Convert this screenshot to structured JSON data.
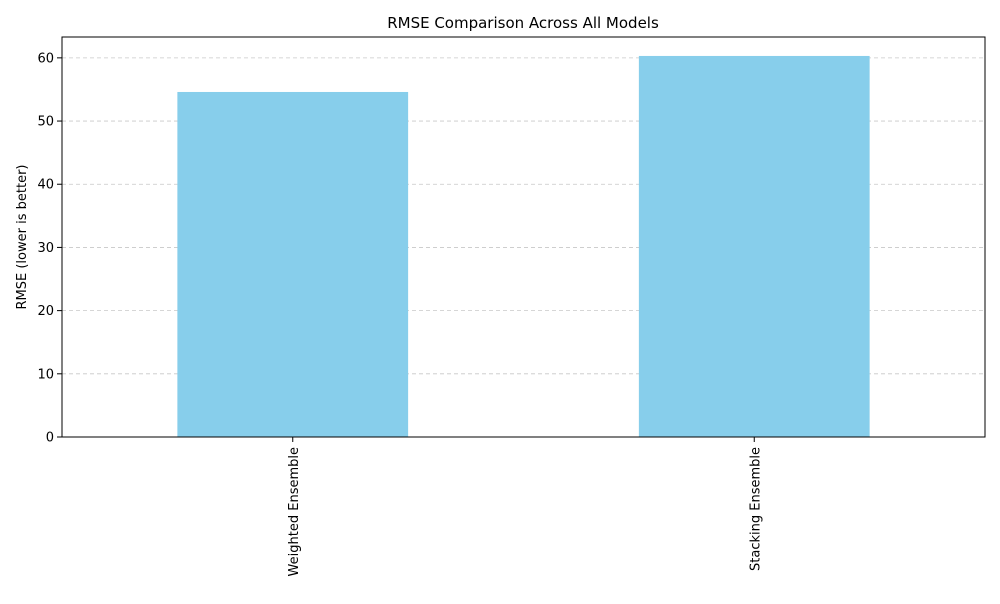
{
  "chart_data": {
    "type": "bar",
    "title": "RMSE Comparison Across All Models",
    "xlabel": "",
    "ylabel": "RMSE (lower is better)",
    "categories": [
      "Weighted Ensemble",
      "Stacking Ensemble"
    ],
    "values": [
      54.6,
      60.3
    ],
    "ylim": [
      0,
      63.3
    ],
    "yticks": [
      0,
      10,
      20,
      30,
      40,
      50,
      60
    ],
    "grid": "y-dashed",
    "legend": "none",
    "colors": {
      "bar": "#87ceeb",
      "grid": "#c8c8c8",
      "axis": "#000000"
    }
  }
}
